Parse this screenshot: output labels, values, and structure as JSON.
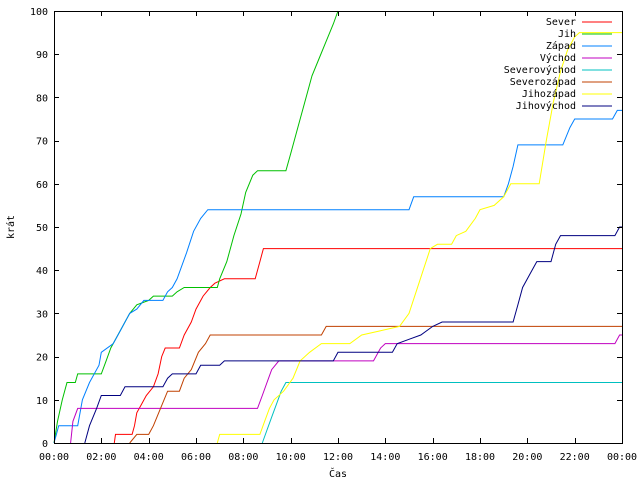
{
  "chart_data": {
    "type": "line",
    "xlabel": "Čas",
    "ylabel": "krát",
    "xlim": [
      0,
      24
    ],
    "ylim": [
      0,
      100
    ],
    "x_unit": "hours",
    "xticks": [
      0,
      2,
      4,
      6,
      8,
      10,
      12,
      14,
      16,
      18,
      20,
      22,
      24
    ],
    "xtick_labels": [
      "00:00",
      "02:00",
      "04:00",
      "06:00",
      "08:00",
      "10:00",
      "12:00",
      "14:00",
      "16:00",
      "18:00",
      "20:00",
      "22:00",
      "00:00"
    ],
    "yticks": [
      0,
      10,
      20,
      30,
      40,
      50,
      60,
      70,
      80,
      90,
      100
    ],
    "grid": false,
    "legend_position": "top-right",
    "series": [
      {
        "name": "Sever",
        "color": "#ff0000",
        "points": [
          [
            2.55,
            0
          ],
          [
            2.6,
            2
          ],
          [
            3.3,
            2
          ],
          [
            3.4,
            4
          ],
          [
            3.5,
            7
          ],
          [
            3.7,
            9
          ],
          [
            3.9,
            11
          ],
          [
            4.2,
            13
          ],
          [
            4.4,
            16
          ],
          [
            4.55,
            20
          ],
          [
            4.7,
            22
          ],
          [
            5.3,
            22
          ],
          [
            5.5,
            25
          ],
          [
            5.8,
            28
          ],
          [
            6.0,
            31
          ],
          [
            6.3,
            34
          ],
          [
            6.6,
            36
          ],
          [
            6.8,
            37
          ],
          [
            7.2,
            38
          ],
          [
            8.5,
            38
          ],
          [
            8.7,
            42
          ],
          [
            8.85,
            45
          ],
          [
            24,
            45
          ]
        ]
      },
      {
        "name": "Jih",
        "color": "#00c000",
        "points": [
          [
            0,
            0
          ],
          [
            0.15,
            5
          ],
          [
            0.35,
            10
          ],
          [
            0.55,
            14
          ],
          [
            0.9,
            14
          ],
          [
            1.0,
            16
          ],
          [
            2.0,
            16
          ],
          [
            2.2,
            19
          ],
          [
            2.4,
            22
          ],
          [
            2.7,
            25
          ],
          [
            3.0,
            28
          ],
          [
            3.2,
            30
          ],
          [
            3.5,
            32
          ],
          [
            4.0,
            33
          ],
          [
            4.2,
            34
          ],
          [
            5.0,
            34
          ],
          [
            5.2,
            35
          ],
          [
            5.5,
            36
          ],
          [
            6.9,
            36
          ],
          [
            7.0,
            38
          ],
          [
            7.3,
            42
          ],
          [
            7.6,
            48
          ],
          [
            7.9,
            53
          ],
          [
            8.1,
            58
          ],
          [
            8.4,
            62
          ],
          [
            8.6,
            63
          ],
          [
            9.8,
            63
          ],
          [
            10.0,
            67
          ],
          [
            10.3,
            73
          ],
          [
            10.6,
            79
          ],
          [
            10.9,
            85
          ],
          [
            11.2,
            89
          ],
          [
            11.5,
            93
          ],
          [
            11.8,
            97
          ],
          [
            12.0,
            100
          ]
        ]
      },
      {
        "name": "Západ",
        "color": "#0080ff",
        "points": [
          [
            0,
            0
          ],
          [
            0.1,
            2
          ],
          [
            0.2,
            4
          ],
          [
            1.0,
            4
          ],
          [
            1.2,
            10
          ],
          [
            1.5,
            14
          ],
          [
            1.9,
            18
          ],
          [
            2.0,
            21
          ],
          [
            2.5,
            23
          ],
          [
            2.8,
            26
          ],
          [
            3.0,
            28
          ],
          [
            3.2,
            30
          ],
          [
            3.5,
            31
          ],
          [
            3.8,
            33
          ],
          [
            4.6,
            33
          ],
          [
            4.8,
            35
          ],
          [
            5.0,
            36
          ],
          [
            5.2,
            38
          ],
          [
            5.6,
            44
          ],
          [
            5.9,
            49
          ],
          [
            6.2,
            52
          ],
          [
            6.5,
            54
          ],
          [
            15.0,
            54
          ],
          [
            15.2,
            57
          ],
          [
            19.0,
            57
          ],
          [
            19.2,
            60
          ],
          [
            19.4,
            64
          ],
          [
            19.6,
            69
          ],
          [
            21.5,
            69
          ],
          [
            21.8,
            73
          ],
          [
            22.0,
            75
          ],
          [
            23.6,
            75
          ],
          [
            23.8,
            77
          ],
          [
            24,
            77
          ]
        ]
      },
      {
        "name": "Východ",
        "color": "#c000c0",
        "points": [
          [
            0.7,
            0
          ],
          [
            0.8,
            5
          ],
          [
            1.0,
            8
          ],
          [
            8.6,
            8
          ],
          [
            8.8,
            11
          ],
          [
            9.0,
            14
          ],
          [
            9.2,
            17
          ],
          [
            9.5,
            19
          ],
          [
            13.5,
            19
          ],
          [
            13.8,
            22
          ],
          [
            14.0,
            23
          ],
          [
            23.7,
            23
          ],
          [
            23.9,
            25
          ],
          [
            24,
            25
          ]
        ]
      },
      {
        "name": "Severovýchod",
        "color": "#00c0c0",
        "points": [
          [
            8.8,
            0
          ],
          [
            9.0,
            3
          ],
          [
            9.2,
            6
          ],
          [
            9.4,
            9
          ],
          [
            9.6,
            12
          ],
          [
            9.8,
            14
          ],
          [
            24,
            14
          ]
        ]
      },
      {
        "name": "Severozápad",
        "color": "#c04000",
        "points": [
          [
            3.2,
            0
          ],
          [
            3.5,
            2
          ],
          [
            4.0,
            2
          ],
          [
            4.2,
            4
          ],
          [
            4.5,
            8
          ],
          [
            4.8,
            12
          ],
          [
            5.3,
            12
          ],
          [
            5.5,
            15
          ],
          [
            5.8,
            17
          ],
          [
            6.1,
            21
          ],
          [
            6.4,
            23
          ],
          [
            6.6,
            25
          ],
          [
            11.3,
            25
          ],
          [
            11.5,
            27
          ],
          [
            24,
            27
          ]
        ]
      },
      {
        "name": "Jihozápad",
        "color": "#ffff00",
        "points": [
          [
            6.9,
            0
          ],
          [
            7.0,
            2
          ],
          [
            8.7,
            2
          ],
          [
            8.9,
            5
          ],
          [
            9.1,
            8
          ],
          [
            9.3,
            10
          ],
          [
            9.7,
            12
          ],
          [
            10.1,
            15
          ],
          [
            10.4,
            19
          ],
          [
            10.8,
            21
          ],
          [
            11.3,
            23
          ],
          [
            12.5,
            23
          ],
          [
            13.0,
            25
          ],
          [
            13.8,
            26
          ],
          [
            14.6,
            27
          ],
          [
            15.0,
            30
          ],
          [
            15.3,
            35
          ],
          [
            15.6,
            40
          ],
          [
            15.9,
            45
          ],
          [
            16.2,
            46
          ],
          [
            16.8,
            46
          ],
          [
            17.0,
            48
          ],
          [
            17.4,
            49
          ],
          [
            17.8,
            52
          ],
          [
            18.0,
            54
          ],
          [
            18.6,
            55
          ],
          [
            19.0,
            57
          ],
          [
            19.3,
            60
          ],
          [
            20.5,
            60
          ],
          [
            20.8,
            70
          ],
          [
            21.1,
            79
          ],
          [
            21.4,
            86
          ],
          [
            21.7,
            91
          ],
          [
            22.0,
            94
          ],
          [
            22.2,
            95
          ],
          [
            24,
            95
          ]
        ]
      },
      {
        "name": "Jihovýchod",
        "color": "#000080",
        "points": [
          [
            1.3,
            0
          ],
          [
            1.5,
            4
          ],
          [
            1.8,
            8
          ],
          [
            2.0,
            11
          ],
          [
            2.8,
            11
          ],
          [
            3.0,
            13
          ],
          [
            4.6,
            13
          ],
          [
            4.8,
            15
          ],
          [
            5.0,
            16
          ],
          [
            6.0,
            16
          ],
          [
            6.2,
            18
          ],
          [
            7.0,
            18
          ],
          [
            7.2,
            19
          ],
          [
            9.5,
            19
          ],
          [
            11.8,
            19
          ],
          [
            12.0,
            21
          ],
          [
            14.3,
            21
          ],
          [
            14.5,
            23
          ],
          [
            15.0,
            24
          ],
          [
            15.5,
            25
          ],
          [
            16.0,
            27
          ],
          [
            16.4,
            28
          ],
          [
            19.4,
            28
          ],
          [
            19.6,
            32
          ],
          [
            19.8,
            36
          ],
          [
            20.1,
            39
          ],
          [
            20.4,
            42
          ],
          [
            21.0,
            42
          ],
          [
            21.2,
            46
          ],
          [
            21.4,
            48
          ],
          [
            23.7,
            48
          ],
          [
            23.9,
            50
          ],
          [
            24,
            50
          ]
        ]
      }
    ]
  }
}
